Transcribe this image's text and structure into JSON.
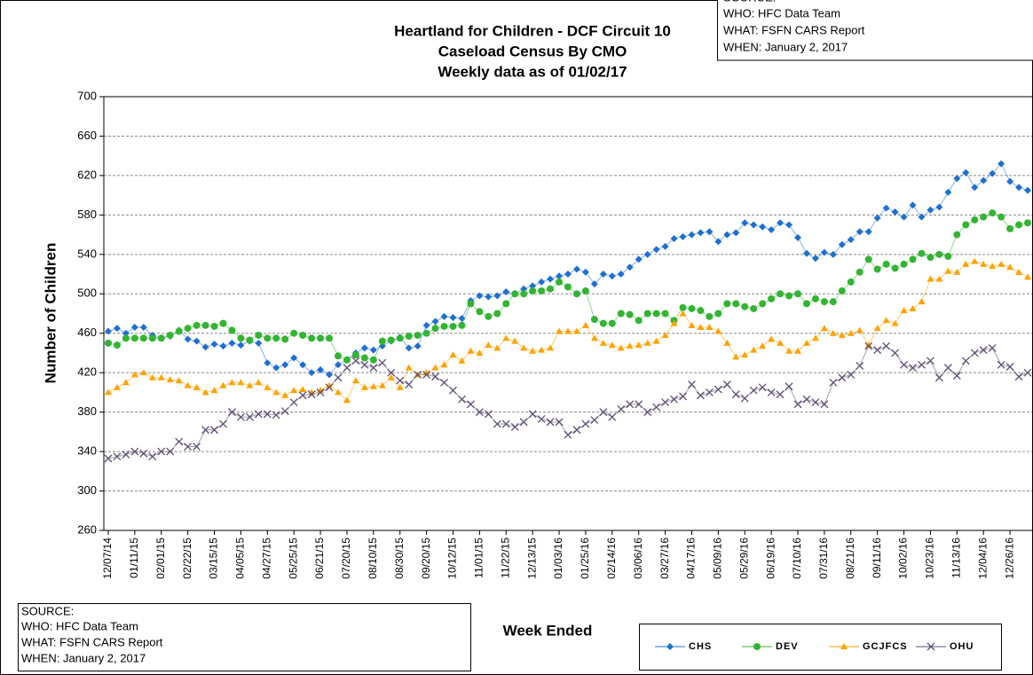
{
  "chart_data": {
    "type": "line",
    "title": [
      "Heartland for Children  - DCF Circuit 10",
      "Caseload  Census  By CMO",
      "Weekly data as of 01/02/17"
    ],
    "source": [
      "SOURCE:",
      "WHO:  HFC Data Team",
      "WHAT:  FSFN CARS Report",
      "WHEN: January 2, 2017"
    ],
    "x_label": "Week Ended",
    "y_label": "Number of Children",
    "ylim": [
      260,
      700
    ],
    "yticks": [
      260,
      300,
      340,
      380,
      420,
      460,
      500,
      540,
      580,
      620,
      660,
      700
    ],
    "grid": true,
    "legend": "bottom-right",
    "categories": [
      "12/07/14",
      null,
      null,
      "01/11/15",
      null,
      null,
      "02/01/15",
      null,
      null,
      "02/22/15",
      null,
      null,
      "03/15/15",
      null,
      null,
      "04/05/15",
      null,
      null,
      "04/27/15",
      null,
      null,
      "05/25/15",
      null,
      null,
      "06/21/15",
      null,
      null,
      "07/20/15",
      null,
      null,
      "08/10/15",
      null,
      null,
      "08/30/15",
      null,
      null,
      "09/20/15",
      null,
      null,
      "10/12/15",
      null,
      null,
      "11/01/15",
      null,
      null,
      "11/22/15",
      null,
      null,
      "12/13/15",
      null,
      null,
      "01/03/16",
      null,
      null,
      "01/25/16",
      null,
      null,
      "02/14/16",
      null,
      null,
      "03/06/16",
      null,
      null,
      "03/27/16",
      null,
      null,
      "04/17/16",
      null,
      null,
      "05/09/16",
      null,
      null,
      "05/29/16",
      null,
      null,
      "06/19/16",
      null,
      null,
      "07/10/16",
      null,
      null,
      "07/31/16",
      null,
      null,
      "08/21/16",
      null,
      null,
      "09/11/16",
      null,
      null,
      "10/02/16",
      null,
      null,
      "10/23/16",
      null,
      null,
      "11/13/16",
      null,
      null,
      "12/04/16",
      null,
      null,
      "12/26/16",
      null,
      null
    ],
    "series": [
      {
        "name": "CHS",
        "color": "#1f6fd1",
        "marker": "diamond",
        "values": [
          462,
          465,
          460,
          466,
          466,
          458,
          455,
          457,
          463,
          454,
          452,
          446,
          449,
          447,
          450,
          448,
          452,
          450,
          430,
          425,
          428,
          435,
          428,
          420,
          423,
          418,
          428,
          433,
          440,
          445,
          443,
          447,
          452,
          456,
          445,
          447,
          468,
          472,
          477,
          476,
          475,
          493,
          498,
          497,
          498,
          502,
          500,
          505,
          508,
          512,
          515,
          518,
          520,
          525,
          522,
          510,
          520,
          518,
          520,
          527,
          535,
          540,
          545,
          548,
          556,
          558,
          560,
          562,
          563,
          553,
          560,
          562,
          572,
          570,
          568,
          565,
          572,
          570,
          557,
          541,
          536,
          542,
          540,
          550,
          555,
          563,
          563,
          577,
          587,
          583,
          578,
          590,
          578,
          585,
          588,
          603,
          617,
          623,
          608,
          615,
          622,
          632,
          614,
          608,
          605
        ]
      },
      {
        "name": "DEV",
        "color": "#33b433",
        "marker": "circle",
        "values": [
          450,
          448,
          455,
          455,
          455,
          455,
          455,
          458,
          462,
          465,
          468,
          468,
          467,
          470,
          463,
          455,
          453,
          458,
          455,
          455,
          454,
          460,
          458,
          455,
          455,
          455,
          437,
          433,
          438,
          435,
          433,
          452,
          453,
          455,
          457,
          458,
          460,
          465,
          467,
          467,
          468,
          490,
          482,
          477,
          480,
          490,
          500,
          500,
          503,
          503,
          505,
          512,
          507,
          500,
          503,
          474,
          470,
          470,
          480,
          479,
          473,
          480,
          480,
          480,
          473,
          486,
          485,
          483,
          477,
          480,
          490,
          490,
          487,
          485,
          490,
          495,
          500,
          498,
          500,
          490,
          495,
          492,
          492,
          503,
          512,
          522,
          535,
          525,
          530,
          526,
          530,
          535,
          541,
          537,
          540,
          538,
          560,
          570,
          575,
          578,
          582,
          578,
          566,
          570,
          572
        ]
      },
      {
        "name": "GCJFCS",
        "color": "#ffa200",
        "marker": "triangle",
        "values": [
          400,
          405,
          410,
          418,
          420,
          415,
          415,
          413,
          412,
          407,
          405,
          400,
          402,
          407,
          410,
          410,
          407,
          410,
          405,
          400,
          397,
          402,
          403,
          400,
          402,
          407,
          400,
          392,
          412,
          405,
          406,
          407,
          415,
          405,
          425,
          418,
          420,
          425,
          428,
          438,
          432,
          442,
          440,
          448,
          445,
          455,
          452,
          445,
          442,
          443,
          445,
          462,
          462,
          462,
          468,
          455,
          450,
          448,
          445,
          447,
          448,
          450,
          452,
          458,
          470,
          480,
          468,
          466,
          466,
          462,
          450,
          436,
          438,
          443,
          447,
          454,
          450,
          442,
          442,
          450,
          455,
          465,
          460,
          458,
          460,
          463,
          448,
          465,
          473,
          470,
          483,
          485,
          492,
          515,
          515,
          523,
          522,
          530,
          533,
          530,
          528,
          530,
          527,
          522,
          517
        ]
      },
      {
        "name": "OHU",
        "color": "#5e4f73",
        "marker": "x",
        "values": [
          333,
          335,
          337,
          340,
          338,
          335,
          340,
          340,
          350,
          345,
          345,
          362,
          362,
          368,
          380,
          375,
          375,
          378,
          378,
          377,
          381,
          390,
          397,
          398,
          400,
          405,
          415,
          425,
          432,
          428,
          425,
          430,
          420,
          412,
          408,
          418,
          418,
          416,
          410,
          402,
          393,
          388,
          380,
          378,
          368,
          368,
          365,
          370,
          378,
          373,
          370,
          370,
          357,
          362,
          368,
          372,
          380,
          375,
          383,
          388,
          388,
          380,
          385,
          390,
          393,
          396,
          408,
          397,
          400,
          403,
          408,
          398,
          394,
          402,
          405,
          400,
          398,
          406,
          388,
          393,
          390,
          388,
          410,
          415,
          418,
          427,
          447,
          443,
          447,
          440,
          428,
          425,
          428,
          432,
          415,
          425,
          417,
          432,
          440,
          443,
          445,
          428,
          426,
          416,
          420
        ]
      }
    ]
  }
}
